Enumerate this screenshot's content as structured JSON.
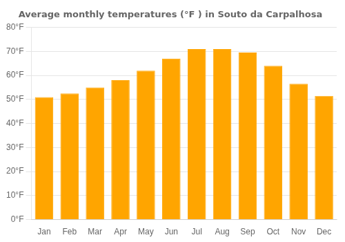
{
  "chart_data": {
    "type": "bar",
    "title": "Average monthly temperatures (°F ) in Souto da Carpalhosa",
    "categories": [
      "Jan",
      "Feb",
      "Mar",
      "Apr",
      "May",
      "Jun",
      "Jul",
      "Aug",
      "Sep",
      "Oct",
      "Nov",
      "Dec"
    ],
    "values": [
      51,
      52.5,
      55,
      58,
      62,
      67,
      71,
      71,
      69.5,
      64,
      56.5,
      51.5
    ],
    "color": "#FFA500",
    "ylim": [
      0,
      80
    ],
    "yticks": [
      {
        "value": 0,
        "label": "0°F"
      },
      {
        "value": 10,
        "label": "10°F"
      },
      {
        "value": 20,
        "label": "20°F"
      },
      {
        "value": 30,
        "label": "30°F"
      },
      {
        "value": 40,
        "label": "40°F"
      },
      {
        "value": 50,
        "label": "50°F"
      },
      {
        "value": 60,
        "label": "60°F"
      },
      {
        "value": 70,
        "label": "70°F"
      },
      {
        "value": 80,
        "label": "80°F"
      }
    ],
    "grid": true
  }
}
